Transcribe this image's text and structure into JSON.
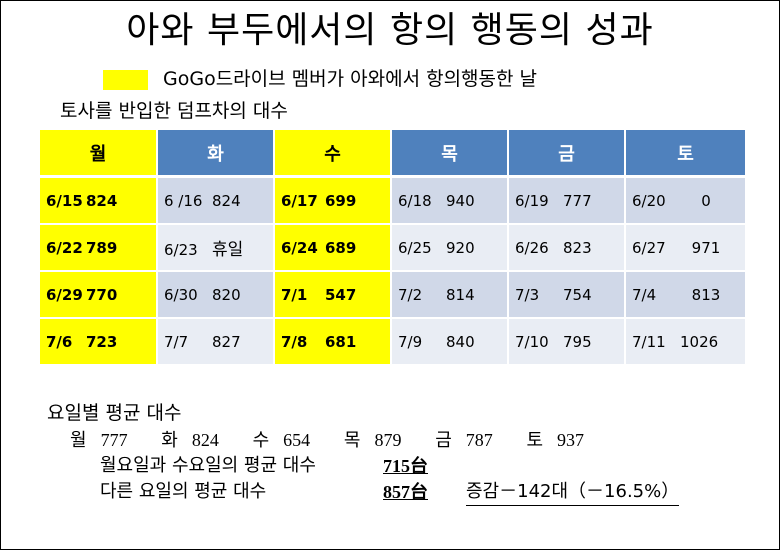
{
  "title": "아와 부두에서의 항의 행동의 성과",
  "legend": {
    "color": "#ffff00",
    "text": "GoGo드라이브 멤버가 아와에서 항의행동한 날"
  },
  "subtitle": "토사를 반입한 덤프차의 대수",
  "colors": {
    "header_blue": "#4f81bd",
    "highlight_yellow": "#ffff00",
    "row_dark": "#d0d8e8",
    "row_light": "#e9edf4"
  },
  "table": {
    "headers": [
      "월",
      "화",
      "수",
      "목",
      "금",
      "토"
    ],
    "rows": [
      [
        {
          "date": "6/15",
          "value": "824"
        },
        {
          "date": "6 /16",
          "value": "824"
        },
        {
          "date": "6/17",
          "value": "699"
        },
        {
          "date": "6/18",
          "value": "940"
        },
        {
          "date": "6/19",
          "value": "777"
        },
        {
          "date": "6/20",
          "value": "0"
        }
      ],
      [
        {
          "date": "6/22",
          "value": "789"
        },
        {
          "date": "6/23",
          "value": "휴일"
        },
        {
          "date": "6/24",
          "value": "689"
        },
        {
          "date": "6/25",
          "value": "920"
        },
        {
          "date": "6/26",
          "value": "823"
        },
        {
          "date": "6/27",
          "value": "971"
        }
      ],
      [
        {
          "date": "6/29",
          "value": "770"
        },
        {
          "date": "6/30",
          "value": "820"
        },
        {
          "date": "7/1",
          "value": "547"
        },
        {
          "date": "7/2",
          "value": "814"
        },
        {
          "date": "7/3",
          "value": "754"
        },
        {
          "date": "7/4",
          "value": "813"
        }
      ],
      [
        {
          "date": "7/6",
          "value": "723"
        },
        {
          "date": "7/7",
          "value": "827"
        },
        {
          "date": "7/8",
          "value": "681"
        },
        {
          "date": "7/9",
          "value": "840"
        },
        {
          "date": "7/10",
          "value": "795"
        },
        {
          "date": "7/11",
          "value": "1026"
        }
      ]
    ]
  },
  "averages": {
    "heading": "요일별 평균 대수",
    "items": [
      {
        "day": "월",
        "value": "777"
      },
      {
        "day": "화",
        "value": "824"
      },
      {
        "day": "수",
        "value": "654"
      },
      {
        "day": "목",
        "value": "879"
      },
      {
        "day": "금",
        "value": "787"
      },
      {
        "day": "토",
        "value": "937"
      }
    ],
    "mon_wed_label": "월요일과 수요일의 평균 대수",
    "mon_wed_value": "715台",
    "other_label": "다른 요일의 평균 대수",
    "other_value": "857台",
    "difference": "증감－142대（－16.5%）"
  }
}
